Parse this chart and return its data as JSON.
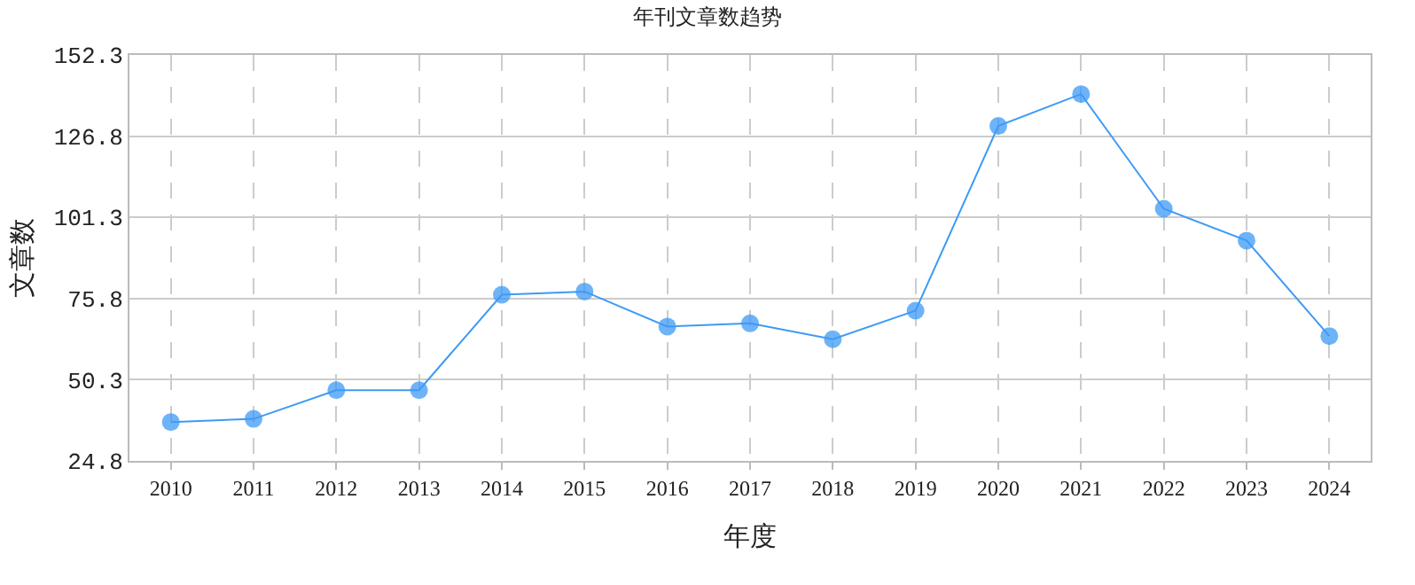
{
  "chart_data": {
    "type": "line",
    "title": "年刊文章数趋势",
    "xlabel": "年度",
    "ylabel": "文章数",
    "categories": [
      "2010",
      "2011",
      "2012",
      "2013",
      "2014",
      "2015",
      "2016",
      "2017",
      "2018",
      "2019",
      "2020",
      "2021",
      "2022",
      "2023",
      "2024"
    ],
    "series": [
      {
        "color": "#3d9af5",
        "values": [
          37,
          38,
          47,
          47,
          77,
          78,
          67,
          68,
          63,
          72,
          130,
          140,
          104,
          94,
          64
        ]
      }
    ],
    "ylim": [
      24.8,
      152.3
    ],
    "yticks": [
      24.8,
      50.3,
      75.8,
      101.3,
      126.8,
      152.3
    ],
    "grid": true,
    "legend": false,
    "marker": "circle",
    "line_style": "solid"
  }
}
